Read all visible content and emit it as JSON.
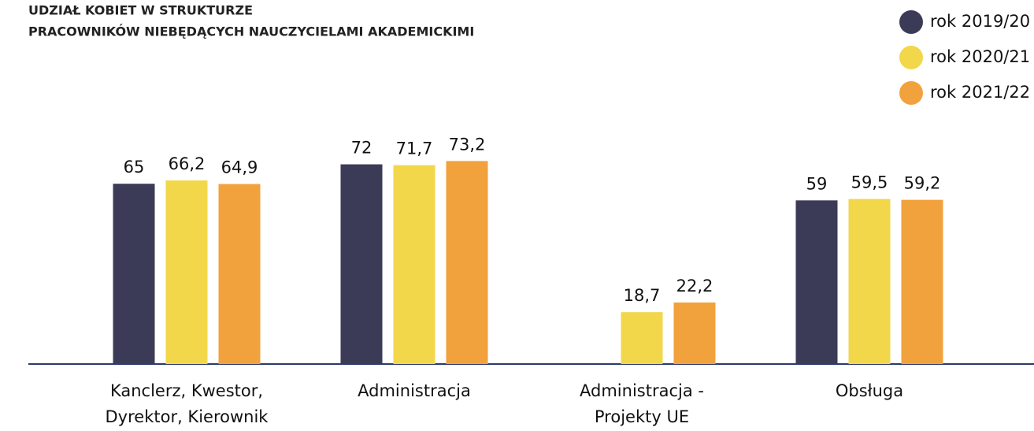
{
  "chart_data": {
    "type": "bar",
    "title": [
      "UDZIAŁ KOBIET W STRUKTURZE",
      "PRACOWNIKÓW NIEBĘDĄCYCH NAUCZYCIELAMI AKADEMICKIMI"
    ],
    "categories": [
      [
        "Kanclerz, Kwestor,",
        "Dyrektor, Kierownik"
      ],
      [
        "Administracja"
      ],
      [
        "Administracja -",
        "Projekty UE"
      ],
      [
        "Obsługa"
      ]
    ],
    "series": [
      {
        "name": "rok 2019/20",
        "color": "#3b3b58",
        "values": [
          65,
          72,
          null,
          59
        ],
        "value_labels": [
          "65",
          "72",
          null,
          "59"
        ]
      },
      {
        "name": "rok 2020/21",
        "color": "#f2d74b",
        "values": [
          66.2,
          71.7,
          18.7,
          59.5
        ],
        "value_labels": [
          "66,2",
          "71,7",
          "18,7",
          "59,5"
        ]
      },
      {
        "name": "rok 2021/22",
        "color": "#f2a23c",
        "values": [
          64.9,
          73.2,
          22.2,
          59.2
        ],
        "value_labels": [
          "64,9",
          "73,2",
          "22,2",
          "59,2"
        ]
      }
    ],
    "legend": "top-right"
  }
}
